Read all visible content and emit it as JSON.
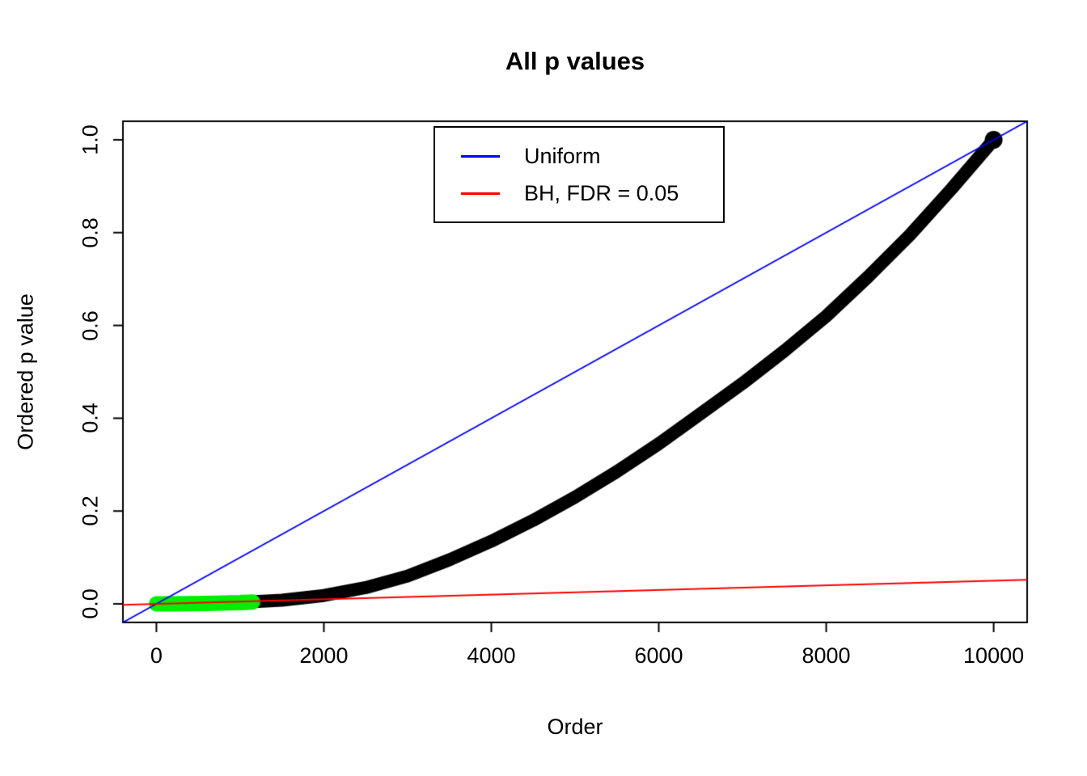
{
  "chart_data": {
    "type": "scatter",
    "title": "All p values",
    "xlabel": "Order",
    "ylabel": "Ordered p value",
    "xlim": [
      -400,
      10400
    ],
    "ylim": [
      -0.04,
      1.04
    ],
    "x_ticks": [
      0,
      2000,
      4000,
      6000,
      8000,
      10000
    ],
    "x_tick_labels": [
      "0",
      "2000",
      "4000",
      "6000",
      "8000",
      "10000"
    ],
    "y_ticks": [
      0.0,
      0.2,
      0.4,
      0.6,
      0.8,
      1.0
    ],
    "y_tick_labels": [
      "0.0",
      "0.2",
      "0.4",
      "0.6",
      "0.8",
      "1.0"
    ],
    "grid": false,
    "legend_position": "top-center-inside",
    "legend": [
      {
        "label": "Uniform",
        "color": "#0000FF"
      },
      {
        "label": "BH, FDR = 0.05",
        "color": "#FF0000"
      }
    ],
    "lines": [
      {
        "name": "uniform-line",
        "color": "#0000FF",
        "intercept": 0,
        "slope": 0.0001
      },
      {
        "name": "bh-threshold-line",
        "color": "#FF0000",
        "intercept": 0,
        "slope": 5e-06
      }
    ],
    "series": [
      {
        "name": "ordered-p-values",
        "color": "#000000",
        "style": "thick-points",
        "width": 16,
        "x": [
          1,
          500,
          1000,
          1500,
          2000,
          2500,
          3000,
          3500,
          4000,
          4500,
          5000,
          5500,
          6000,
          6500,
          7000,
          7500,
          8000,
          8500,
          9000,
          9500,
          10000
        ],
        "y": [
          0.0,
          0.001,
          0.003,
          0.008,
          0.018,
          0.035,
          0.06,
          0.095,
          0.135,
          0.18,
          0.23,
          0.285,
          0.345,
          0.41,
          0.475,
          0.545,
          0.62,
          0.705,
          0.795,
          0.895,
          1.0
        ]
      },
      {
        "name": "significant-p-values",
        "color": "#00EE00",
        "style": "thick-points",
        "width": 19,
        "x": [
          1,
          200,
          400,
          600,
          800,
          1000,
          1150
        ],
        "y": [
          0.0,
          0.0002,
          0.0005,
          0.001,
          0.0016,
          0.0025,
          0.004
        ]
      }
    ]
  }
}
